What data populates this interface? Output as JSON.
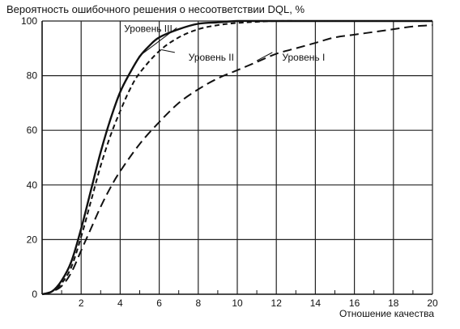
{
  "chart_data": {
    "type": "line",
    "title": "Вероятность ошибочного решения о несоответствии DQL, %",
    "xlabel": "Отношение качества",
    "ylabel": "",
    "xlim": [
      0,
      20
    ],
    "ylim": [
      0,
      100
    ],
    "x_ticks": [
      2,
      4,
      6,
      8,
      10,
      12,
      14,
      16,
      18,
      20
    ],
    "y_ticks": [
      0,
      20,
      40,
      60,
      80,
      100
    ],
    "grid": "x-every-2, y-every-20",
    "series": [
      {
        "name": "Уровень III",
        "style": "solid",
        "x": [
          0,
          0.5,
          1,
          1.5,
          2,
          2.5,
          3,
          3.5,
          4,
          4.5,
          5,
          5.5,
          6,
          7,
          8,
          9,
          10,
          11,
          12,
          14,
          16,
          18,
          20
        ],
        "y": [
          0,
          1,
          5,
          12,
          24,
          38,
          52,
          64,
          74,
          81,
          87,
          91,
          94,
          97,
          99,
          99.5,
          100,
          100,
          100,
          100,
          100,
          100,
          100
        ]
      },
      {
        "name": "Уровень II",
        "style": "dashed",
        "x": [
          0,
          0.5,
          1,
          1.5,
          2,
          2.5,
          3,
          3.5,
          4,
          4.5,
          5,
          6,
          7,
          8,
          9,
          10,
          11,
          12,
          14,
          16,
          18,
          20
        ],
        "y": [
          0,
          1,
          4,
          10,
          21,
          34,
          47,
          58,
          67,
          75,
          81,
          89,
          94,
          97,
          98.5,
          99.3,
          99.7,
          100,
          100,
          100,
          100,
          100
        ]
      },
      {
        "name": "Уровень I",
        "style": "dashed",
        "x": [
          0,
          0.5,
          1,
          1.5,
          2,
          2.5,
          3,
          3.5,
          4,
          5,
          6,
          7,
          8,
          9,
          10,
          11,
          12,
          13,
          14,
          15,
          16,
          17,
          18,
          19,
          20
        ],
        "y": [
          0,
          1,
          3,
          8,
          16,
          24,
          32,
          39,
          45,
          55,
          63,
          70,
          75,
          79,
          82,
          85,
          88,
          90,
          92,
          94,
          95,
          96,
          97,
          98,
          98.5
        ]
      }
    ],
    "annotations": [
      {
        "text": "Уровень III",
        "target_series": "Уровень III"
      },
      {
        "text": "Уровень II",
        "target_series": "Уровень II"
      },
      {
        "text": "Уровень I",
        "target_series": "Уровень I"
      }
    ]
  }
}
